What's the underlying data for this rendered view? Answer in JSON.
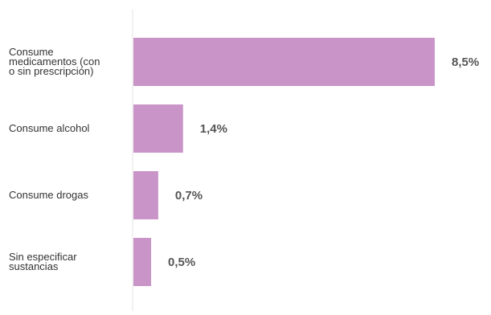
{
  "chart_data": {
    "type": "bar",
    "orientation": "horizontal",
    "categories": [
      "Consume\nmedicamentos (con\no sin prescripción)",
      "Consume alcohol",
      "Consume drogas",
      "Sin especificar\nsustancias"
    ],
    "values": [
      8.5,
      1.4,
      0.7,
      0.5
    ],
    "value_labels": [
      "8,5%",
      "1,4%",
      "0,7%",
      "0,5%"
    ],
    "unit": "%",
    "xlim": [
      0,
      8.5
    ],
    "grid": false,
    "bar_color": "#c994c7",
    "baseline_color": "#e3e3e3",
    "title": "",
    "xlabel": "",
    "ylabel": ""
  }
}
